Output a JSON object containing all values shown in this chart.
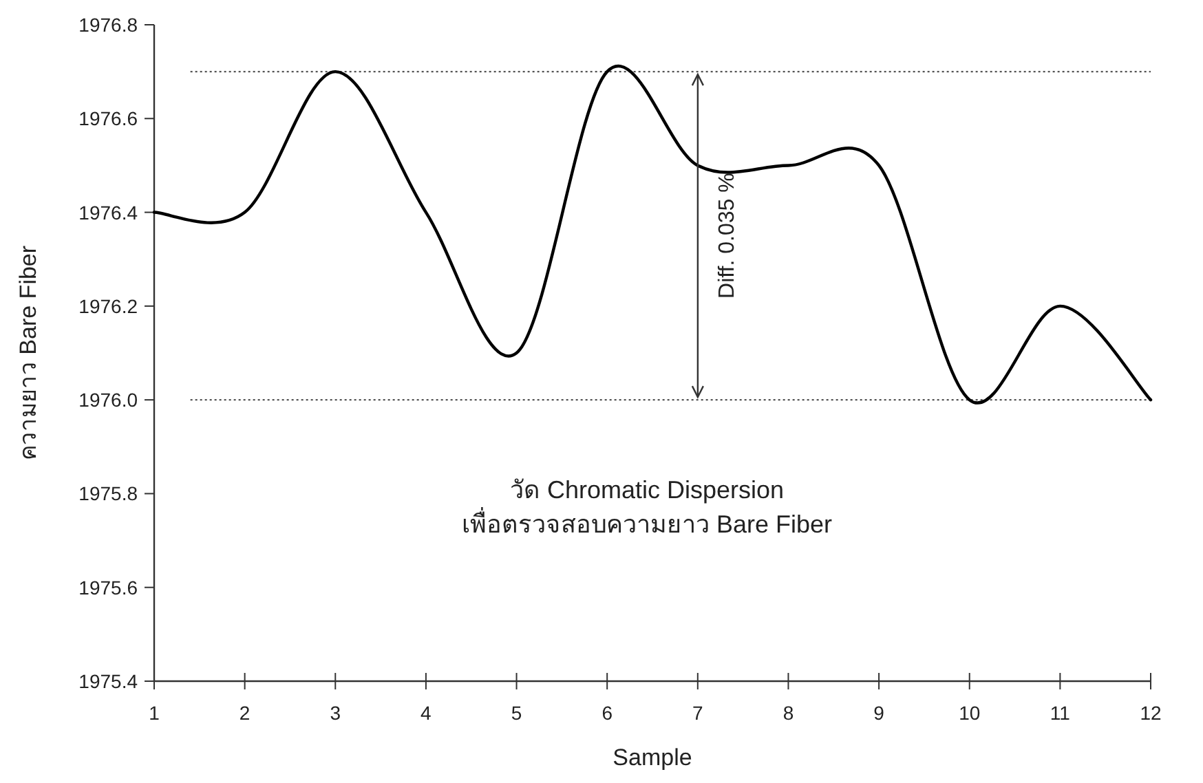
{
  "chart_data": {
    "type": "line",
    "xlabel": "Sample",
    "ylabel": "ความยาว Bare Fiber",
    "x": [
      1,
      2,
      3,
      4,
      5,
      6,
      7,
      8,
      9,
      10,
      11,
      12
    ],
    "series": [
      {
        "color": "#000000",
        "values": [
          1976.4,
          1976.4,
          1976.7,
          1976.4,
          1976.1,
          1976.7,
          1976.5,
          1976.5,
          1976.5,
          1976.0,
          1976.2,
          1976.0
        ]
      }
    ],
    "xlim": [
      1,
      12
    ],
    "xticks": [
      1,
      2,
      3,
      4,
      5,
      6,
      7,
      8,
      9,
      10,
      11,
      12
    ],
    "ylim": [
      1975.4,
      1976.8
    ],
    "yticks": [
      1975.4,
      1975.6,
      1975.8,
      {
        "value": 1976,
        "label": "1976.0"
      },
      1976.2,
      1976.4,
      1976.6,
      1976.8
    ],
    "ref_lines": [
      {
        "axis": "y",
        "value": 1976.7,
        "label": null,
        "line_style": "dotted",
        "color": "#555555"
      },
      {
        "axis": "y",
        "value": 1976.0,
        "label": null,
        "line_style": "dotted",
        "color": "#555555"
      }
    ],
    "annotations": [
      "Diff. 0.035 %",
      "วัด Chromatic Dispersion\nเพื่อตรวจสอบความยาว Bare Fiber"
    ],
    "grid": false,
    "marker": "none",
    "line_style": "solid"
  }
}
